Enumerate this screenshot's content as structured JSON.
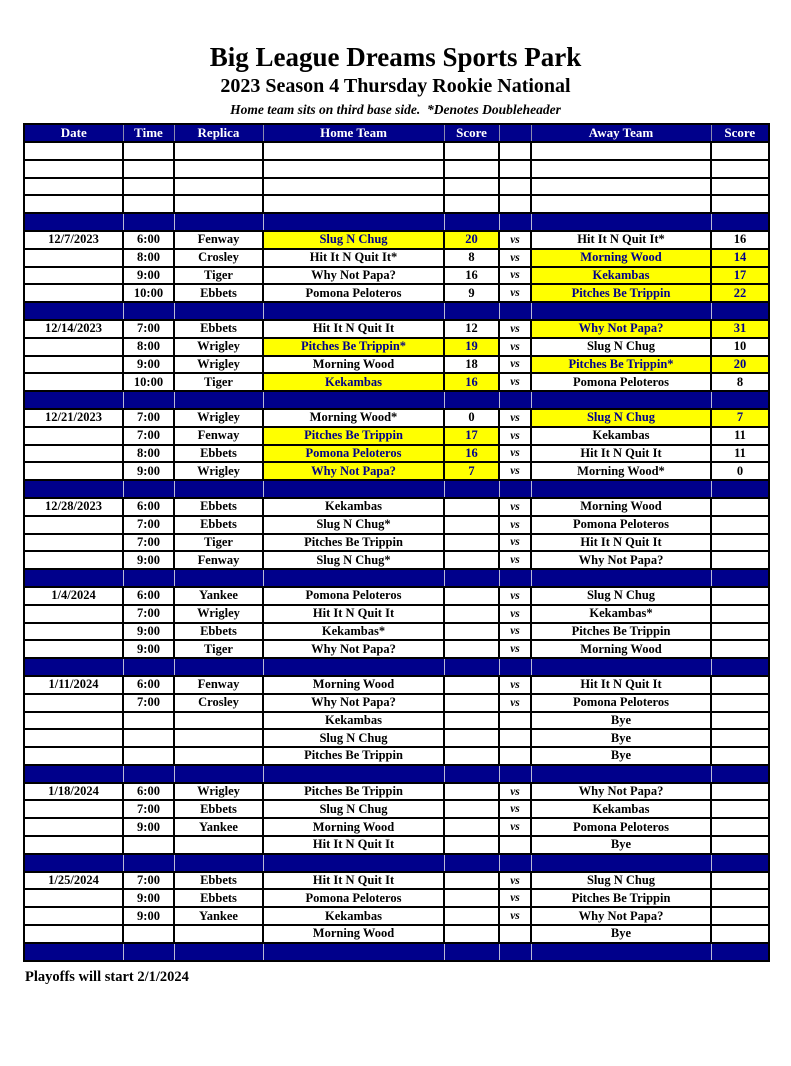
{
  "page": {
    "title": "Big League Dreams Sports Park",
    "subtitle": "2023 Season 4 Thursday Rookie National",
    "note": "Home team sits on third base side.  *Denotes Doubleheader",
    "footer": "Playoffs will start 2/1/2024"
  },
  "colors": {
    "header_bg": "#00008B",
    "separator_bg": "#00008B",
    "highlight_bg": "#FFFF00",
    "highlight_text": "#00008B",
    "header_text": "#FFFFFF"
  },
  "table": {
    "columns": [
      "Date",
      "Time",
      "Replica",
      "Home Team",
      "Score",
      "",
      "Away Team",
      "Score"
    ],
    "vs_label": "vs",
    "empty_leading_rows": 4,
    "weeks": [
      {
        "date": "12/7/2023",
        "games": [
          {
            "time": "6:00",
            "replica": "Fenway",
            "home": "Slug N Chug",
            "home_score": "20",
            "away": "Hit It N Quit It*",
            "away_score": "16",
            "winner": "home",
            "bye": false
          },
          {
            "time": "8:00",
            "replica": "Crosley",
            "home": "Hit It N Quit It*",
            "home_score": "8",
            "away": "Morning Wood",
            "away_score": "14",
            "winner": "away",
            "bye": false
          },
          {
            "time": "9:00",
            "replica": "Tiger",
            "home": "Why Not Papa?",
            "home_score": "16",
            "away": "Kekambas",
            "away_score": "17",
            "winner": "away",
            "bye": false
          },
          {
            "time": "10:00",
            "replica": "Ebbets",
            "home": "Pomona Peloteros",
            "home_score": "9",
            "away": "Pitches Be Trippin",
            "away_score": "22",
            "winner": "away",
            "bye": false
          }
        ]
      },
      {
        "date": "12/14/2023",
        "games": [
          {
            "time": "7:00",
            "replica": "Ebbets",
            "home": "Hit It N Quit It",
            "home_score": "12",
            "away": "Why Not Papa?",
            "away_score": "31",
            "winner": "away",
            "bye": false
          },
          {
            "time": "8:00",
            "replica": "Wrigley",
            "home": "Pitches Be Trippin*",
            "home_score": "19",
            "away": "Slug N Chug",
            "away_score": "10",
            "winner": "home",
            "bye": false
          },
          {
            "time": "9:00",
            "replica": "Wrigley",
            "home": "Morning Wood",
            "home_score": "18",
            "away": "Pitches Be Trippin*",
            "away_score": "20",
            "winner": "away",
            "bye": false
          },
          {
            "time": "10:00",
            "replica": "Tiger",
            "home": "Kekambas",
            "home_score": "16",
            "away": "Pomona Peloteros",
            "away_score": "8",
            "winner": "home",
            "bye": false
          }
        ]
      },
      {
        "date": "12/21/2023",
        "games": [
          {
            "time": "7:00",
            "replica": "Wrigley",
            "home": "Morning Wood*",
            "home_score": "0",
            "away": "Slug N Chug",
            "away_score": "7",
            "winner": "away",
            "bye": false
          },
          {
            "time": "7:00",
            "replica": "Fenway",
            "home": "Pitches Be Trippin",
            "home_score": "17",
            "away": "Kekambas",
            "away_score": "11",
            "winner": "home",
            "bye": false
          },
          {
            "time": "8:00",
            "replica": "Ebbets",
            "home": "Pomona Peloteros",
            "home_score": "16",
            "away": "Hit It N Quit It",
            "away_score": "11",
            "winner": "home",
            "bye": false
          },
          {
            "time": "9:00",
            "replica": "Wrigley",
            "home": "Why Not Papa?",
            "home_score": "7",
            "away": "Morning Wood*",
            "away_score": "0",
            "winner": "home",
            "bye": false
          }
        ]
      },
      {
        "date": "12/28/2023",
        "games": [
          {
            "time": "6:00",
            "replica": "Ebbets",
            "home": "Kekambas",
            "home_score": "",
            "away": "Morning Wood",
            "away_score": "",
            "winner": null,
            "bye": false
          },
          {
            "time": "7:00",
            "replica": "Ebbets",
            "home": "Slug N Chug*",
            "home_score": "",
            "away": "Pomona Peloteros",
            "away_score": "",
            "winner": null,
            "bye": false
          },
          {
            "time": "7:00",
            "replica": "Tiger",
            "home": "Pitches Be Trippin",
            "home_score": "",
            "away": "Hit It N Quit It",
            "away_score": "",
            "winner": null,
            "bye": false
          },
          {
            "time": "9:00",
            "replica": "Fenway",
            "home": "Slug N Chug*",
            "home_score": "",
            "away": "Why Not Papa?",
            "away_score": "",
            "winner": null,
            "bye": false
          }
        ]
      },
      {
        "date": "1/4/2024",
        "games": [
          {
            "time": "6:00",
            "replica": "Yankee",
            "home": "Pomona Peloteros",
            "home_score": "",
            "away": "Slug N Chug",
            "away_score": "",
            "winner": null,
            "bye": false
          },
          {
            "time": "7:00",
            "replica": "Wrigley",
            "home": "Hit It N Quit It",
            "home_score": "",
            "away": "Kekambas*",
            "away_score": "",
            "winner": null,
            "bye": false
          },
          {
            "time": "9:00",
            "replica": "Ebbets",
            "home": "Kekambas*",
            "home_score": "",
            "away": "Pitches Be Trippin",
            "away_score": "",
            "winner": null,
            "bye": false
          },
          {
            "time": "9:00",
            "replica": "Tiger",
            "home": "Why Not Papa?",
            "home_score": "",
            "away": "Morning Wood",
            "away_score": "",
            "winner": null,
            "bye": false
          }
        ]
      },
      {
        "date": "1/11/2024",
        "games": [
          {
            "time": "6:00",
            "replica": "Fenway",
            "home": "Morning Wood",
            "home_score": "",
            "away": "Hit It N Quit It",
            "away_score": "",
            "winner": null,
            "bye": false
          },
          {
            "time": "7:00",
            "replica": "Crosley",
            "home": "Why Not Papa?",
            "home_score": "",
            "away": "Pomona Peloteros",
            "away_score": "",
            "winner": null,
            "bye": false
          },
          {
            "time": "",
            "replica": "",
            "home": "Kekambas",
            "home_score": "",
            "away": "Bye",
            "away_score": "",
            "winner": null,
            "bye": true
          },
          {
            "time": "",
            "replica": "",
            "home": "Slug N Chug",
            "home_score": "",
            "away": "Bye",
            "away_score": "",
            "winner": null,
            "bye": true
          },
          {
            "time": "",
            "replica": "",
            "home": "Pitches Be Trippin",
            "home_score": "",
            "away": "Bye",
            "away_score": "",
            "winner": null,
            "bye": true
          }
        ]
      },
      {
        "date": "1/18/2024",
        "games": [
          {
            "time": "6:00",
            "replica": "Wrigley",
            "home": "Pitches Be Trippin",
            "home_score": "",
            "away": "Why Not Papa?",
            "away_score": "",
            "winner": null,
            "bye": false
          },
          {
            "time": "7:00",
            "replica": "Ebbets",
            "home": "Slug N Chug",
            "home_score": "",
            "away": "Kekambas",
            "away_score": "",
            "winner": null,
            "bye": false
          },
          {
            "time": "9:00",
            "replica": "Yankee",
            "home": "Morning Wood",
            "home_score": "",
            "away": "Pomona Peloteros",
            "away_score": "",
            "winner": null,
            "bye": false
          },
          {
            "time": "",
            "replica": "",
            "home": "Hit It N Quit It",
            "home_score": "",
            "away": "Bye",
            "away_score": "",
            "winner": null,
            "bye": true
          }
        ]
      },
      {
        "date": "1/25/2024",
        "games": [
          {
            "time": "7:00",
            "replica": "Ebbets",
            "home": "Hit It N Quit It",
            "home_score": "",
            "away": "Slug N Chug",
            "away_score": "",
            "winner": null,
            "bye": false
          },
          {
            "time": "9:00",
            "replica": "Ebbets",
            "home": "Pomona Peloteros",
            "home_score": "",
            "away": "Pitches Be Trippin",
            "away_score": "",
            "winner": null,
            "bye": false
          },
          {
            "time": "9:00",
            "replica": "Yankee",
            "home": "Kekambas",
            "home_score": "",
            "away": "Why Not Papa?",
            "away_score": "",
            "winner": null,
            "bye": false
          },
          {
            "time": "",
            "replica": "",
            "home": "Morning Wood",
            "home_score": "",
            "away": "Bye",
            "away_score": "",
            "winner": null,
            "bye": true
          }
        ]
      }
    ]
  }
}
